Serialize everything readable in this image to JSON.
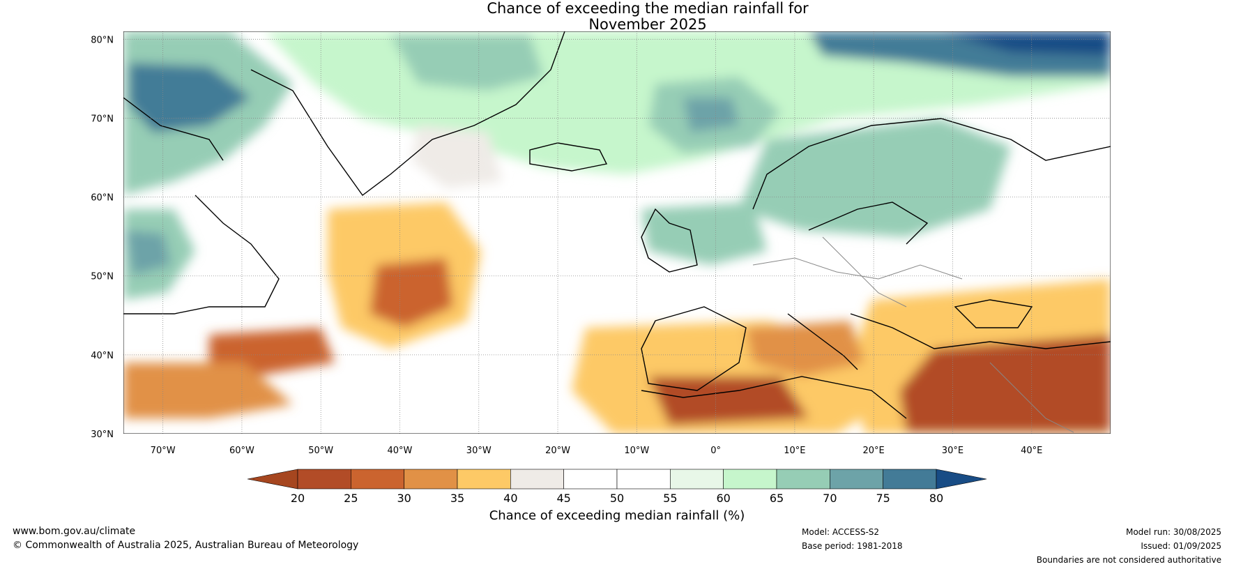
{
  "title_line1": "Chance of exceeding the median rainfall for",
  "title_line2": "November 2025",
  "lat_labels": [
    "80°N",
    "70°N",
    "60°N",
    "50°N",
    "40°N",
    "30°N"
  ],
  "lon_labels": [
    "70°W",
    "60°W",
    "50°W",
    "40°W",
    "30°W",
    "20°W",
    "10°W",
    "0°",
    "10°E",
    "20°E",
    "30°E",
    "40°E"
  ],
  "map": {
    "extent": {
      "lon_min": -75,
      "lon_max": 50,
      "lat_min": 30,
      "lat_max": 81
    },
    "lat_values": [
      80,
      70,
      60,
      50,
      40,
      30
    ],
    "lon_values": [
      -70,
      -60,
      -50,
      -40,
      -30,
      -20,
      -10,
      0,
      10,
      20,
      30,
      40
    ],
    "gridlines": true
  },
  "colorbar": {
    "label": "Chance of exceeding median rainfall (%)",
    "ticks": [
      "20",
      "25",
      "30",
      "35",
      "40",
      "45",
      "50",
      "55",
      "60",
      "65",
      "70",
      "75",
      "80"
    ],
    "colors": [
      "#a6461f",
      "#b24c27",
      "#cb642f",
      "#e19146",
      "#fdc966",
      "#efebe7",
      "#ffffff",
      "#ffffff",
      "#e8f7e8",
      "#c6f6cc",
      "#96cdb5",
      "#6da3a8",
      "#437b97",
      "#184c85"
    ],
    "extend": "both"
  },
  "footer": {
    "url": "www.bom.gov.au/climate",
    "copyright": "© Commonwealth of Australia 2025, Australian Bureau of Meteorology",
    "model": "Model: ACCESS-S2",
    "base_period": "Base period: 1981-2018",
    "model_run": "Model run: 30/08/2025",
    "issued": "Issued: 01/09/2025",
    "disclaimer": "Boundaries are not considered authoritative"
  }
}
